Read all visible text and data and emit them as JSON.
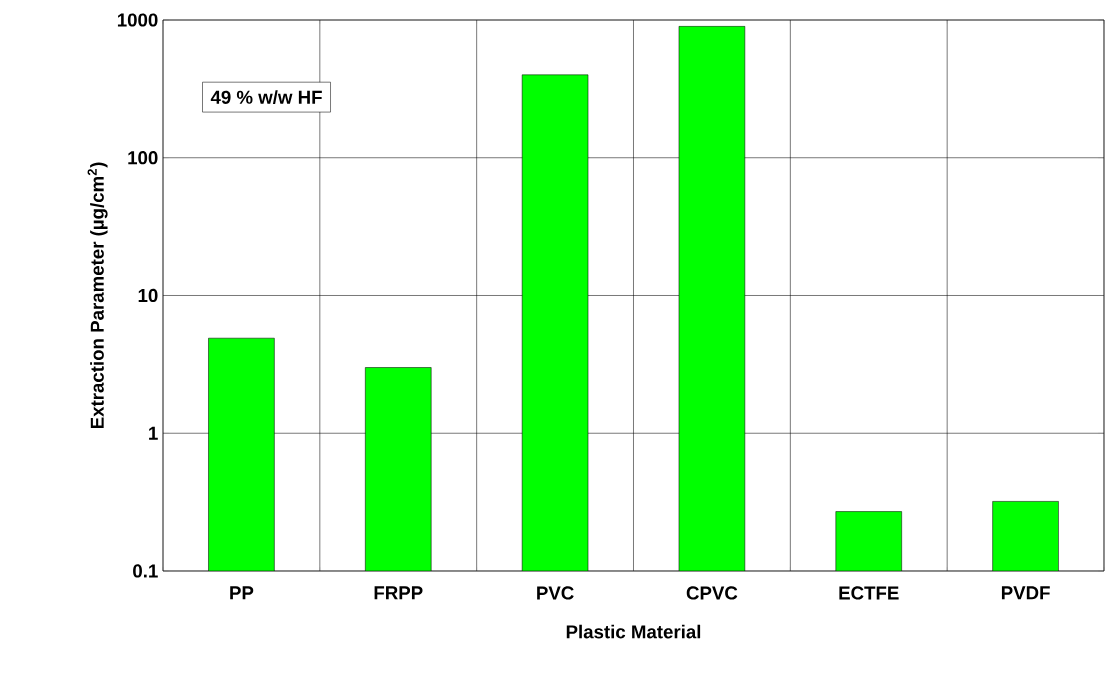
{
  "chart_data": {
    "type": "bar",
    "xlabel": "Plastic Material",
    "ylabel": "Extraction Parameter (µg/cm$^{2}$)",
    "categories": [
      "PP",
      "FRPP",
      "PVC",
      "CPVC",
      "ECTFE",
      "PVDF"
    ],
    "values": [
      4.9,
      3.0,
      400,
      900,
      0.27,
      0.32
    ],
    "color": "#00ff00",
    "log": "y",
    "ylim": [
      0.1,
      1000
    ],
    "yticks": [
      0.1,
      1,
      10,
      100,
      1000
    ],
    "grid": true,
    "annotations": [
      "49 % w/w HF"
    ]
  }
}
